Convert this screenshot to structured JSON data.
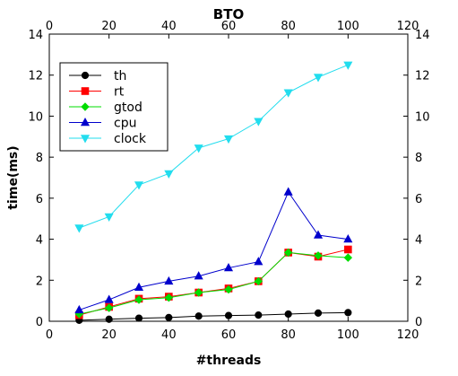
{
  "chart_data": {
    "type": "line",
    "title": "BTO",
    "xlabel": "#threads",
    "ylabel": "time(ms)",
    "xlim": [
      0,
      120
    ],
    "ylim": [
      0,
      14
    ],
    "x_ticks": [
      0,
      20,
      40,
      60,
      80,
      100,
      120
    ],
    "y_ticks": [
      0,
      2,
      4,
      6,
      8,
      10,
      12,
      14
    ],
    "grid": false,
    "legend_position": "top-left",
    "x": [
      10,
      20,
      30,
      40,
      50,
      60,
      70,
      80,
      90,
      100
    ],
    "series": [
      {
        "name": "th",
        "color": "#000000",
        "marker": "circle",
        "values": [
          0.05,
          0.1,
          0.15,
          0.18,
          0.25,
          0.28,
          0.3,
          0.35,
          0.4,
          0.42
        ]
      },
      {
        "name": "rt",
        "color": "#ff0000",
        "marker": "square",
        "values": [
          0.3,
          0.7,
          1.1,
          1.2,
          1.4,
          1.6,
          1.95,
          3.35,
          3.15,
          3.5
        ]
      },
      {
        "name": "gtod",
        "color": "#00dd00",
        "marker": "diamond",
        "values": [
          0.35,
          0.65,
          1.05,
          1.15,
          1.4,
          1.55,
          1.95,
          3.35,
          3.2,
          3.1
        ]
      },
      {
        "name": "cpu",
        "color": "#0000cc",
        "marker": "triangle-up",
        "values": [
          0.55,
          1.05,
          1.65,
          1.95,
          2.2,
          2.6,
          2.9,
          6.3,
          4.2,
          4.0
        ]
      },
      {
        "name": "clock",
        "color": "#22ddee",
        "marker": "triangle-down",
        "values": [
          4.55,
          5.1,
          6.65,
          7.2,
          8.45,
          8.9,
          9.75,
          11.15,
          11.9,
          12.5
        ]
      }
    ]
  }
}
